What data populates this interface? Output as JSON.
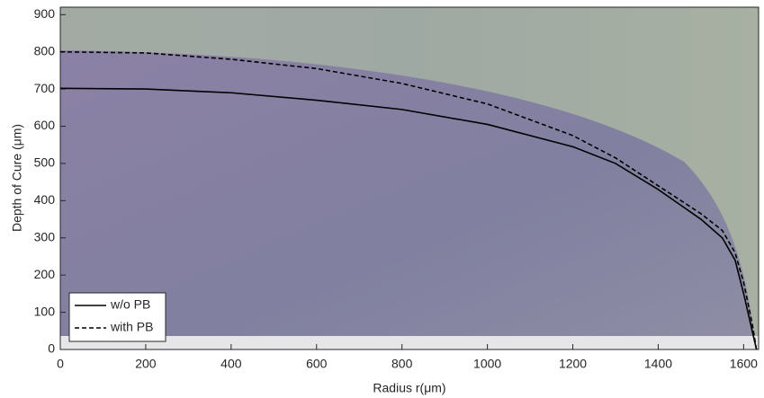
{
  "chart_data": {
    "type": "line",
    "x_label": "Radius r(μm)",
    "y_label": "Depth of Cure (μm)",
    "xlim": [
      0,
      1635
    ],
    "ylim": [
      0,
      920
    ],
    "xticks": [
      0,
      200,
      400,
      600,
      800,
      1000,
      1200,
      1400,
      1600
    ],
    "yticks": [
      0,
      100,
      200,
      300,
      400,
      500,
      600,
      700,
      800,
      900
    ],
    "legend": "lower left",
    "series": [
      {
        "name": "w/o PB",
        "color": "#000000",
        "dash": false,
        "x": [
          0,
          200,
          400,
          600,
          800,
          1000,
          1200,
          1300,
          1400,
          1500,
          1550,
          1580,
          1600,
          1620,
          1630
        ],
        "values": [
          702,
          700,
          690,
          670,
          645,
          605,
          545,
          500,
          430,
          350,
          300,
          240,
          150,
          50,
          0
        ]
      },
      {
        "name": "with PB",
        "color": "#000000",
        "dash": true,
        "x": [
          0,
          200,
          400,
          600,
          800,
          1000,
          1200,
          1300,
          1400,
          1500,
          1550,
          1580,
          1600,
          1620,
          1630
        ],
        "values": [
          800,
          797,
          780,
          755,
          715,
          660,
          575,
          515,
          440,
          365,
          320,
          260,
          180,
          70,
          0
        ]
      }
    ]
  }
}
